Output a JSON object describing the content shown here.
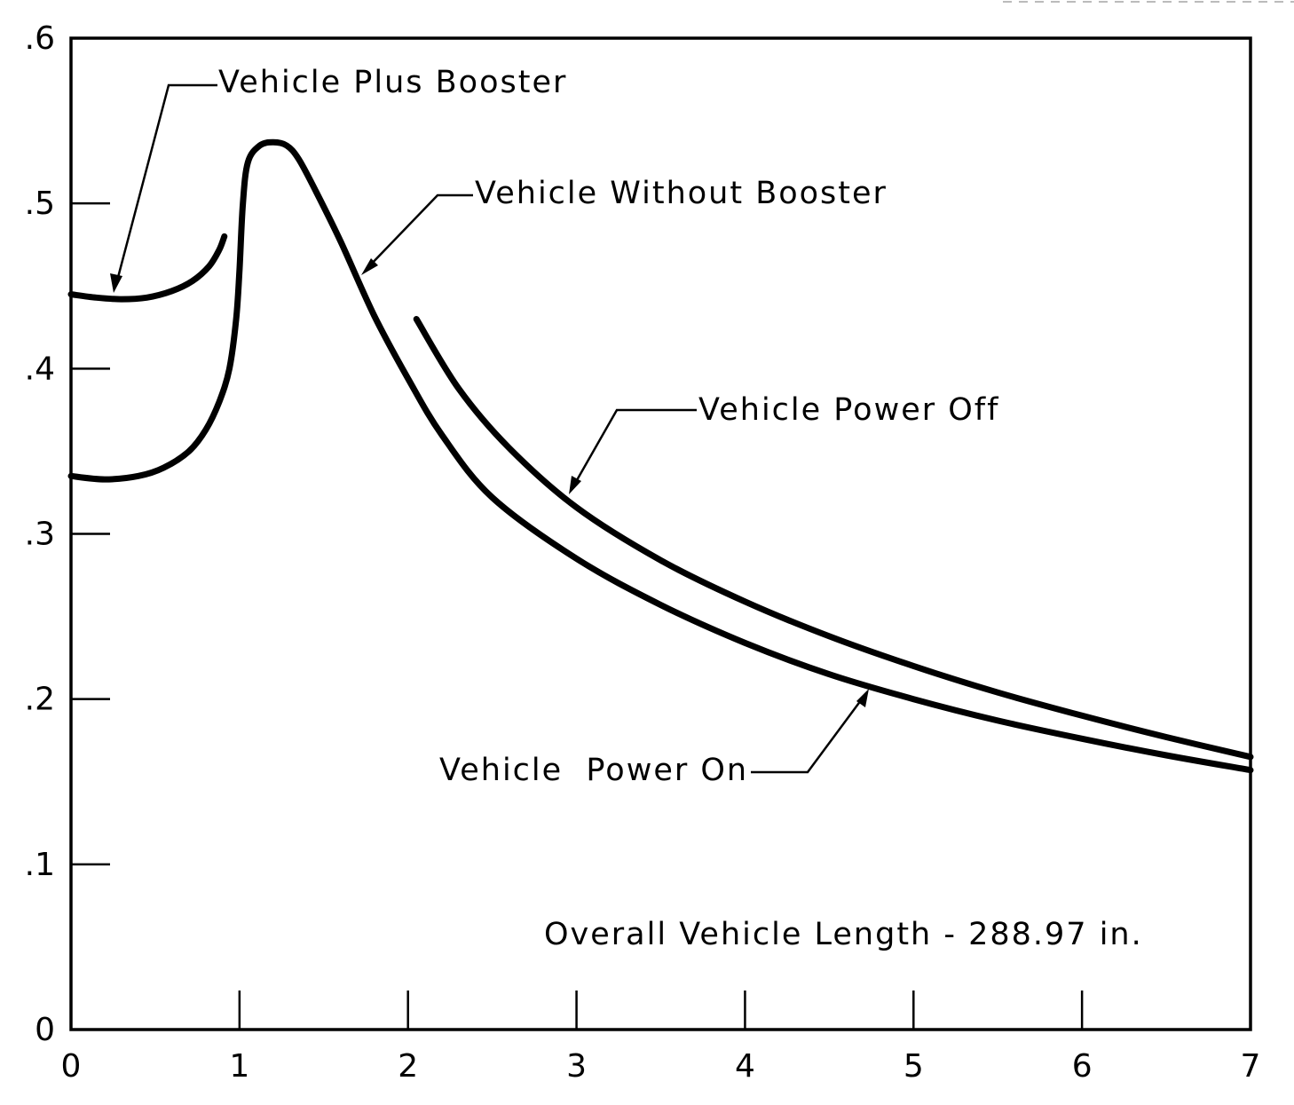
{
  "chart_data": {
    "type": "line",
    "title": "",
    "xlabel": "",
    "ylabel": "",
    "xlim": [
      0,
      7
    ],
    "ylim": [
      0,
      0.6
    ],
    "grid": false,
    "x_ticks": [
      {
        "value": 0,
        "label": "0"
      },
      {
        "value": 1,
        "label": "1"
      },
      {
        "value": 2,
        "label": "2"
      },
      {
        "value": 3,
        "label": "3"
      },
      {
        "value": 4,
        "label": "4"
      },
      {
        "value": 5,
        "label": "5"
      },
      {
        "value": 6,
        "label": "6"
      },
      {
        "value": 7,
        "label": "7"
      }
    ],
    "y_ticks": [
      {
        "value": 0,
        "label": "0"
      },
      {
        "value": 0.1,
        "label": ".1"
      },
      {
        "value": 0.2,
        "label": ".2"
      },
      {
        "value": 0.3,
        "label": ".3"
      },
      {
        "value": 0.4,
        "label": ".4"
      },
      {
        "value": 0.5,
        "label": ".5"
      },
      {
        "value": 0.6,
        "label": ".6"
      }
    ],
    "series": [
      {
        "name": "Vehicle Plus Booster",
        "points": [
          [
            0,
            0.445
          ],
          [
            0.15,
            0.443
          ],
          [
            0.3,
            0.442
          ],
          [
            0.45,
            0.443
          ],
          [
            0.6,
            0.447
          ],
          [
            0.72,
            0.453
          ],
          [
            0.82,
            0.462
          ],
          [
            0.88,
            0.472
          ],
          [
            0.91,
            0.48
          ]
        ]
      },
      {
        "name": "Vehicle Without Booster",
        "points": [
          [
            0,
            0.335
          ],
          [
            0.2,
            0.333
          ],
          [
            0.4,
            0.335
          ],
          [
            0.55,
            0.34
          ],
          [
            0.7,
            0.35
          ],
          [
            0.8,
            0.363
          ],
          [
            0.88,
            0.38
          ],
          [
            0.94,
            0.4
          ],
          [
            0.98,
            0.43
          ],
          [
            1.0,
            0.46
          ],
          [
            1.02,
            0.5
          ],
          [
            1.05,
            0.525
          ],
          [
            1.12,
            0.535
          ],
          [
            1.2,
            0.537
          ],
          [
            1.28,
            0.535
          ],
          [
            1.35,
            0.527
          ],
          [
            1.45,
            0.508
          ],
          [
            1.6,
            0.477
          ],
          [
            1.8,
            0.432
          ],
          [
            2.0,
            0.394
          ],
          [
            2.2,
            0.36
          ],
          [
            2.5,
            0.322
          ],
          [
            3.0,
            0.285
          ],
          [
            3.5,
            0.257
          ],
          [
            4.0,
            0.234
          ],
          [
            4.5,
            0.215
          ],
          [
            5.0,
            0.2
          ],
          [
            5.5,
            0.187
          ],
          [
            6.0,
            0.176
          ],
          [
            6.5,
            0.166
          ],
          [
            7.0,
            0.157
          ]
        ]
      },
      {
        "name": "Vehicle Power Off",
        "points": [
          [
            2.05,
            0.43
          ],
          [
            2.3,
            0.388
          ],
          [
            2.6,
            0.352
          ],
          [
            3.0,
            0.316
          ],
          [
            3.5,
            0.284
          ],
          [
            4.0,
            0.259
          ],
          [
            4.5,
            0.238
          ],
          [
            5.0,
            0.22
          ],
          [
            5.5,
            0.204
          ],
          [
            6.0,
            0.19
          ],
          [
            6.5,
            0.177
          ],
          [
            7.0,
            0.165
          ]
        ]
      }
    ],
    "annotations": [
      {
        "text": "Vehicle Plus Booster"
      },
      {
        "text": "Vehicle Without Booster"
      },
      {
        "text": "Vehicle Power Off"
      },
      {
        "text": "Vehicle  Power On"
      },
      {
        "text": "Overall Vehicle Length - 288.97 in."
      }
    ]
  }
}
